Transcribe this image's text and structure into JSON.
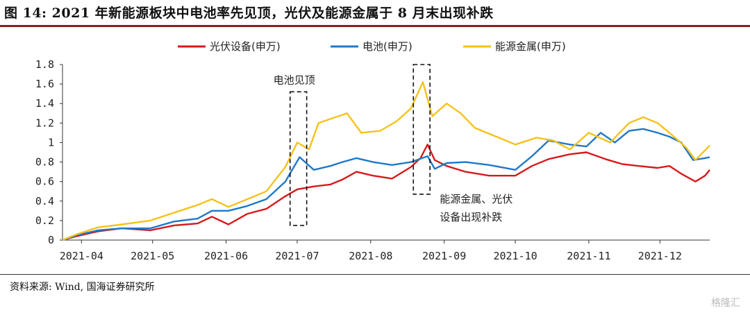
{
  "header": {
    "title": "图 14: 2021 年新能源板块中电池率先见顶，光伏及能源金属于 8 月末出现补跌"
  },
  "footer": {
    "source": "资料来源: Wind, 国海证券研究所",
    "watermark": "格隆汇"
  },
  "chart_data": {
    "type": "line",
    "title": "",
    "xlabel": "",
    "ylabel": "",
    "ylim": [
      0,
      1.8
    ],
    "yticks": [
      "0",
      "0.2",
      "0.4",
      "0.6",
      "0.8",
      "1",
      "1.2",
      "1.4",
      "1.6",
      "1.8"
    ],
    "xlim": [
      "2021-03-24",
      "2021-12-22"
    ],
    "xticks": [
      {
        "date": "2021-04-01",
        "label": "2021-04"
      },
      {
        "date": "2021-05-01",
        "label": "2021-05"
      },
      {
        "date": "2021-06-01",
        "label": "2021-06"
      },
      {
        "date": "2021-07-01",
        "label": "2021-07"
      },
      {
        "date": "2021-08-01",
        "label": "2021-08"
      },
      {
        "date": "2021-09-01",
        "label": "2021-09"
      },
      {
        "date": "2021-10-01",
        "label": "2021-10"
      },
      {
        "date": "2021-11-01",
        "label": "2021-11"
      },
      {
        "date": "2021-12-01",
        "label": "2021-12"
      }
    ],
    "grid": false,
    "legend_position": "top",
    "series": [
      {
        "name": "光伏设备(申万)",
        "color": "#d7191c",
        "points": [
          [
            "2021-03-24",
            0.0
          ],
          [
            "2021-03-30",
            0.04
          ],
          [
            "2021-04-08",
            0.09
          ],
          [
            "2021-04-18",
            0.12
          ],
          [
            "2021-04-30",
            0.1
          ],
          [
            "2021-05-10",
            0.15
          ],
          [
            "2021-05-20",
            0.17
          ],
          [
            "2021-05-26",
            0.24
          ],
          [
            "2021-06-02",
            0.16
          ],
          [
            "2021-06-10",
            0.27
          ],
          [
            "2021-06-18",
            0.32
          ],
          [
            "2021-06-26",
            0.45
          ],
          [
            "2021-07-01",
            0.52
          ],
          [
            "2021-07-08",
            0.55
          ],
          [
            "2021-07-15",
            0.57
          ],
          [
            "2021-07-20",
            0.62
          ],
          [
            "2021-07-26",
            0.7
          ],
          [
            "2021-08-02",
            0.66
          ],
          [
            "2021-08-10",
            0.63
          ],
          [
            "2021-08-18",
            0.75
          ],
          [
            "2021-08-22",
            0.84
          ],
          [
            "2021-08-25",
            0.98
          ],
          [
            "2021-08-28",
            0.82
          ],
          [
            "2021-09-02",
            0.76
          ],
          [
            "2021-09-10",
            0.7
          ],
          [
            "2021-09-20",
            0.66
          ],
          [
            "2021-10-01",
            0.66
          ],
          [
            "2021-10-08",
            0.76
          ],
          [
            "2021-10-15",
            0.83
          ],
          [
            "2021-10-24",
            0.88
          ],
          [
            "2021-10-31",
            0.9
          ],
          [
            "2021-11-08",
            0.83
          ],
          [
            "2021-11-15",
            0.78
          ],
          [
            "2021-11-22",
            0.76
          ],
          [
            "2021-11-30",
            0.74
          ],
          [
            "2021-12-05",
            0.76
          ],
          [
            "2021-12-10",
            0.68
          ],
          [
            "2021-12-16",
            0.6
          ],
          [
            "2021-12-20",
            0.66
          ],
          [
            "2021-12-22",
            0.72
          ]
        ]
      },
      {
        "name": "电池(申万)",
        "color": "#1f78c8",
        "points": [
          [
            "2021-03-24",
            0.0
          ],
          [
            "2021-03-30",
            0.05
          ],
          [
            "2021-04-08",
            0.1
          ],
          [
            "2021-04-18",
            0.12
          ],
          [
            "2021-04-30",
            0.12
          ],
          [
            "2021-05-10",
            0.19
          ],
          [
            "2021-05-20",
            0.22
          ],
          [
            "2021-05-26",
            0.3
          ],
          [
            "2021-06-02",
            0.3
          ],
          [
            "2021-06-10",
            0.35
          ],
          [
            "2021-06-18",
            0.42
          ],
          [
            "2021-06-26",
            0.6
          ],
          [
            "2021-07-02",
            0.85
          ],
          [
            "2021-07-08",
            0.72
          ],
          [
            "2021-07-15",
            0.76
          ],
          [
            "2021-07-20",
            0.8
          ],
          [
            "2021-07-26",
            0.84
          ],
          [
            "2021-08-02",
            0.8
          ],
          [
            "2021-08-10",
            0.77
          ],
          [
            "2021-08-18",
            0.8
          ],
          [
            "2021-08-25",
            0.86
          ],
          [
            "2021-08-28",
            0.73
          ],
          [
            "2021-09-02",
            0.79
          ],
          [
            "2021-09-10",
            0.8
          ],
          [
            "2021-09-20",
            0.77
          ],
          [
            "2021-10-01",
            0.72
          ],
          [
            "2021-10-08",
            0.86
          ],
          [
            "2021-10-15",
            1.02
          ],
          [
            "2021-10-24",
            0.98
          ],
          [
            "2021-10-31",
            0.96
          ],
          [
            "2021-11-06",
            1.1
          ],
          [
            "2021-11-12",
            1.0
          ],
          [
            "2021-11-18",
            1.12
          ],
          [
            "2021-11-24",
            1.14
          ],
          [
            "2021-11-30",
            1.1
          ],
          [
            "2021-12-05",
            1.06
          ],
          [
            "2021-12-10",
            1.0
          ],
          [
            "2021-12-15",
            0.82
          ],
          [
            "2021-12-20",
            0.84
          ],
          [
            "2021-12-22",
            0.85
          ]
        ]
      },
      {
        "name": "能源金属(申万)",
        "color": "#f5c21b",
        "points": [
          [
            "2021-03-24",
            0.0
          ],
          [
            "2021-03-30",
            0.06
          ],
          [
            "2021-04-08",
            0.13
          ],
          [
            "2021-04-18",
            0.16
          ],
          [
            "2021-04-30",
            0.2
          ],
          [
            "2021-05-10",
            0.28
          ],
          [
            "2021-05-20",
            0.36
          ],
          [
            "2021-05-26",
            0.42
          ],
          [
            "2021-06-02",
            0.34
          ],
          [
            "2021-06-10",
            0.42
          ],
          [
            "2021-06-18",
            0.5
          ],
          [
            "2021-06-26",
            0.75
          ],
          [
            "2021-07-01",
            1.0
          ],
          [
            "2021-07-06",
            0.93
          ],
          [
            "2021-07-10",
            1.2
          ],
          [
            "2021-07-16",
            1.25
          ],
          [
            "2021-07-22",
            1.3
          ],
          [
            "2021-07-28",
            1.1
          ],
          [
            "2021-08-05",
            1.12
          ],
          [
            "2021-08-12",
            1.22
          ],
          [
            "2021-08-18",
            1.35
          ],
          [
            "2021-08-23",
            1.62
          ],
          [
            "2021-08-27",
            1.27
          ],
          [
            "2021-09-02",
            1.4
          ],
          [
            "2021-09-08",
            1.3
          ],
          [
            "2021-09-14",
            1.15
          ],
          [
            "2021-09-24",
            1.05
          ],
          [
            "2021-10-01",
            0.98
          ],
          [
            "2021-10-10",
            1.05
          ],
          [
            "2021-10-17",
            1.02
          ],
          [
            "2021-10-24",
            0.93
          ],
          [
            "2021-11-01",
            1.1
          ],
          [
            "2021-11-10",
            1.0
          ],
          [
            "2021-11-18",
            1.2
          ],
          [
            "2021-11-24",
            1.26
          ],
          [
            "2021-11-30",
            1.2
          ],
          [
            "2021-12-05",
            1.1
          ],
          [
            "2021-12-12",
            0.95
          ],
          [
            "2021-12-16",
            0.82
          ],
          [
            "2021-12-20",
            0.92
          ],
          [
            "2021-12-22",
            0.97
          ]
        ]
      }
    ],
    "annotations": [
      {
        "text": "电池见顶",
        "lines": [
          "电池见顶"
        ],
        "box_x": [
          "2021-06-28",
          "2021-07-05"
        ],
        "box_y": [
          0.15,
          1.52
        ]
      },
      {
        "text": "能源金属、光伏设备出现补跌",
        "lines": [
          "能源金属、光伏",
          "设备出现补跌"
        ],
        "box_x": [
          "2021-08-19",
          "2021-08-26"
        ],
        "box_y": [
          0.47,
          1.8
        ]
      }
    ]
  }
}
